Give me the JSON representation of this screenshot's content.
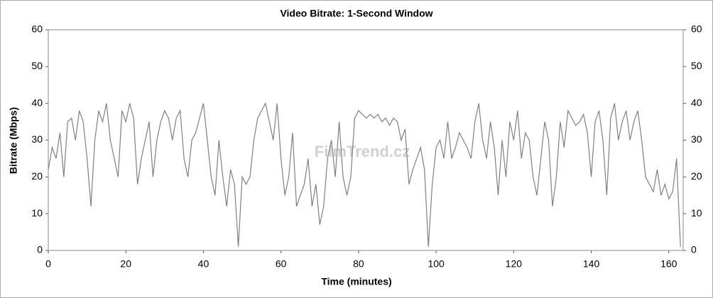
{
  "chart_data": {
    "type": "line",
    "title": "Video Bitrate: 1-Second Window",
    "xlabel": "Time (minutes)",
    "ylabel": "Bitrate (Mbps)",
    "watermark": "FilmTrend.cz",
    "xlim": [
      0,
      163.7
    ],
    "xticks": [
      0,
      20,
      40,
      60,
      80,
      100,
      120,
      140,
      160
    ],
    "ylim": [
      0,
      60
    ],
    "yticks": [
      0,
      10,
      20,
      30,
      40,
      50,
      60
    ],
    "y2lim": [
      0,
      60
    ],
    "y2ticks": [
      0,
      10,
      20,
      30,
      40,
      50,
      60
    ],
    "series": [
      {
        "color": "#808080",
        "x": [
          0,
          1,
          2,
          3,
          4,
          5,
          6,
          7,
          8,
          9,
          10,
          11,
          12,
          13,
          14,
          15,
          16,
          17,
          18,
          19,
          20,
          21,
          22,
          23,
          24,
          25,
          26,
          27,
          28,
          29,
          30,
          31,
          32,
          33,
          34,
          35,
          36,
          37,
          38,
          39,
          40,
          41,
          42,
          43,
          44,
          45,
          46,
          47,
          48,
          49,
          50,
          51,
          52,
          53,
          54,
          55,
          56,
          57,
          58,
          59,
          60,
          61,
          62,
          63,
          64,
          65,
          66,
          67,
          68,
          69,
          70,
          71,
          72,
          73,
          74,
          75,
          76,
          77,
          78,
          79,
          80,
          81,
          82,
          83,
          84,
          85,
          86,
          87,
          88,
          89,
          90,
          91,
          92,
          93,
          94,
          95,
          96,
          97,
          98,
          99,
          100,
          101,
          102,
          103,
          104,
          105,
          106,
          107,
          108,
          109,
          110,
          111,
          112,
          113,
          114,
          115,
          116,
          117,
          118,
          119,
          120,
          121,
          122,
          123,
          124,
          125,
          126,
          127,
          128,
          129,
          130,
          131,
          132,
          133,
          134,
          135,
          136,
          137,
          138,
          139,
          140,
          141,
          142,
          143,
          144,
          145,
          146,
          147,
          148,
          149,
          150,
          151,
          152,
          153,
          154,
          155,
          156,
          157,
          158,
          159,
          160,
          161,
          162,
          163
        ],
        "values": [
          22,
          28,
          25,
          32,
          20,
          35,
          36,
          30,
          38,
          35,
          25,
          12,
          30,
          38,
          35,
          40,
          30,
          25,
          20,
          38,
          35,
          40,
          36,
          18,
          25,
          30,
          35,
          20,
          30,
          35,
          38,
          36,
          30,
          36,
          38,
          25,
          20,
          30,
          32,
          36,
          40,
          30,
          20,
          15,
          30,
          20,
          12,
          22,
          18,
          1,
          20,
          18,
          20,
          30,
          36,
          38,
          40,
          35,
          30,
          40,
          25,
          15,
          20,
          32,
          12,
          15,
          18,
          25,
          12,
          18,
          7,
          12,
          25,
          30,
          20,
          35,
          20,
          15,
          20,
          36,
          38,
          37,
          36,
          37,
          36,
          37,
          35,
          36,
          34,
          36,
          35,
          30,
          33,
          18,
          22,
          25,
          28,
          22,
          1,
          18,
          28,
          30,
          25,
          35,
          25,
          28,
          32,
          30,
          28,
          25,
          35,
          40,
          30,
          25,
          35,
          28,
          15,
          30,
          20,
          35,
          30,
          38,
          25,
          32,
          30,
          20,
          15,
          25,
          35,
          30,
          12,
          20,
          35,
          28,
          38,
          36,
          34,
          35,
          37,
          32,
          20,
          35,
          38,
          30,
          15,
          36,
          40,
          30,
          35,
          38,
          30,
          35,
          38,
          30,
          20,
          18,
          16,
          22,
          15,
          18,
          14,
          16,
          25,
          1
        ]
      }
    ]
  }
}
